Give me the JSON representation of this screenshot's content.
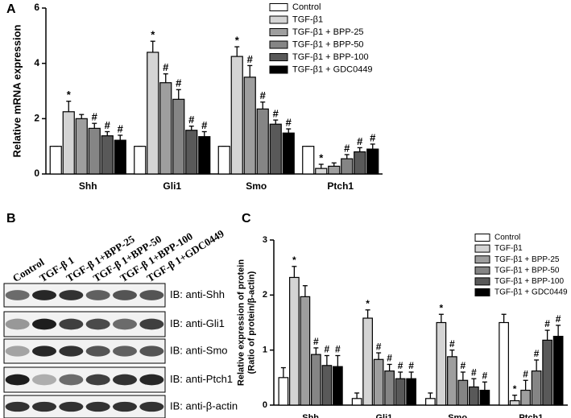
{
  "panel_labels": [
    "A",
    "B",
    "C"
  ],
  "chart_data": [
    {
      "type": "bar",
      "ylabel": [
        "Relative mRNA expression"
      ],
      "categories": [
        "Shh",
        "Gli1",
        "Smo",
        "Ptch1"
      ],
      "ylim": [
        0,
        6
      ],
      "yticks": [
        0,
        2,
        4,
        6
      ],
      "series": [
        {
          "name": "Control",
          "color": "#ffffff",
          "values": [
            1,
            1,
            1,
            1
          ],
          "errors": [
            0,
            0,
            0,
            0
          ],
          "markers": [
            null,
            null,
            null,
            null
          ]
        },
        {
          "name": "TGF-β1",
          "color": "#d4d4d4",
          "values": [
            2.25,
            4.4,
            4.25,
            0.2
          ],
          "errors": [
            0.38,
            0.4,
            0.35,
            0.15
          ],
          "markers": [
            "*",
            "*",
            "*",
            "*"
          ]
        },
        {
          "name": "TGF-β1 + BPP-25",
          "color": "#9e9e9e",
          "values": [
            2.0,
            3.3,
            3.5,
            0.28
          ],
          "errors": [
            0.15,
            0.32,
            0.42,
            0.12
          ],
          "markers": [
            null,
            "#",
            "#",
            null
          ]
        },
        {
          "name": "TGF-β1 + BPP-50",
          "color": "#858585",
          "values": [
            1.65,
            2.7,
            2.35,
            0.55
          ],
          "errors": [
            0.18,
            0.35,
            0.25,
            0.15
          ],
          "markers": [
            "#",
            "#",
            "#",
            "#"
          ]
        },
        {
          "name": "TGF-β1 + BPP-100",
          "color": "#595959",
          "values": [
            1.38,
            1.58,
            1.8,
            0.8
          ],
          "errors": [
            0.15,
            0.15,
            0.15,
            0.15
          ],
          "markers": [
            "#",
            "#",
            "#",
            "#"
          ]
        },
        {
          "name": "TGF-β1 + GDC0449",
          "color": "#000000",
          "values": [
            1.22,
            1.35,
            1.48,
            0.9
          ],
          "errors": [
            0.18,
            0.18,
            0.15,
            0.18
          ],
          "markers": [
            "#",
            "#",
            "#",
            "#"
          ]
        }
      ]
    },
    {
      "type": "bar",
      "ylabel": [
        "Relative expression of protein",
        "(Ratio of protein/β-actin)"
      ],
      "categories": [
        "Shh",
        "Gli1",
        "Smo",
        "Ptch1"
      ],
      "ylim": [
        0,
        3
      ],
      "yticks": [
        0,
        1,
        2,
        3
      ],
      "series": [
        {
          "name": "Control",
          "color": "#ffffff",
          "values": [
            0.5,
            0.12,
            0.12,
            1.5
          ],
          "errors": [
            0.18,
            0.1,
            0.1,
            0.15
          ],
          "markers": [
            null,
            null,
            null,
            null
          ]
        },
        {
          "name": "TGF-β1",
          "color": "#d4d4d4",
          "values": [
            2.32,
            1.58,
            1.5,
            0.08
          ],
          "errors": [
            0.2,
            0.15,
            0.15,
            0.1
          ],
          "markers": [
            "*",
            "*",
            "*",
            "*"
          ]
        },
        {
          "name": "TGF-β1 + BPP-25",
          "color": "#9e9e9e",
          "values": [
            1.97,
            0.83,
            0.88,
            0.27
          ],
          "errors": [
            0.2,
            0.12,
            0.12,
            0.18
          ],
          "markers": [
            null,
            "#",
            "#",
            "#"
          ]
        },
        {
          "name": "TGF-β1 + BPP-50",
          "color": "#858585",
          "values": [
            0.92,
            0.62,
            0.45,
            0.62
          ],
          "errors": [
            0.12,
            0.12,
            0.15,
            0.2
          ],
          "markers": [
            "#",
            "#",
            "#",
            "#"
          ]
        },
        {
          "name": "TGF-β1 + BPP-100",
          "color": "#595959",
          "values": [
            0.72,
            0.48,
            0.33,
            1.18
          ],
          "errors": [
            0.18,
            0.12,
            0.15,
            0.18
          ],
          "markers": [
            "#",
            "#",
            "#",
            "#"
          ]
        },
        {
          "name": "TGF-β1 + GDC0449",
          "color": "#000000",
          "values": [
            0.7,
            0.48,
            0.27,
            1.25
          ],
          "errors": [
            0.2,
            0.12,
            0.15,
            0.2
          ],
          "markers": [
            "#",
            "#",
            "#",
            "#"
          ]
        }
      ]
    }
  ],
  "blot": {
    "lanes": [
      "Control",
      "TGF-β 1",
      "TGF-β 1+BPP-25",
      "TGF-β 1+BPP-50",
      "TGF-β 1+BPP-100",
      "TGF-β 1+GDC0449"
    ],
    "rows": [
      "IB: anti-Shh",
      "IB: anti-Gli1",
      "IB: anti-Smo",
      "IB: anti-Ptch1",
      "IB: anti-β-actin"
    ]
  }
}
